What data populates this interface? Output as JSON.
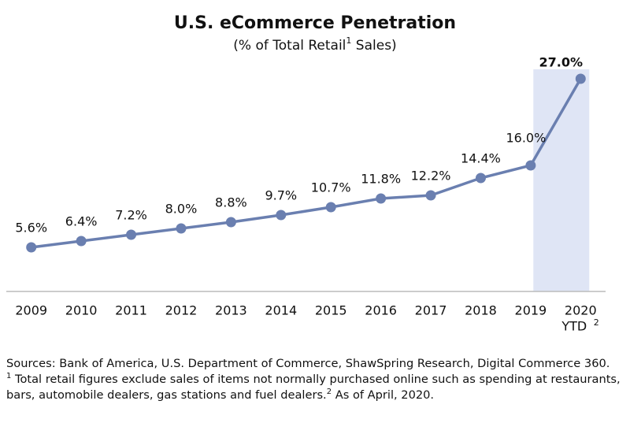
{
  "chart_data": {
    "type": "line",
    "title": "U.S. eCommerce Penetration",
    "subtitle_before": "(% of Total Retail",
    "subtitle_ref": "1",
    "subtitle_after": " Sales)",
    "categories": [
      "2009",
      "2010",
      "2011",
      "2012",
      "2013",
      "2014",
      "2015",
      "2016",
      "2017",
      "2018",
      "2019",
      "2020"
    ],
    "last_category_suffix": "YTD",
    "last_category_ref": "2",
    "series": [
      {
        "name": "eCommerce penetration",
        "color": "#6a7fb0",
        "values": [
          5.6,
          6.4,
          7.2,
          8.0,
          8.8,
          9.7,
          10.7,
          11.8,
          12.2,
          14.4,
          16.0,
          27.0
        ],
        "value_labels": [
          "5.6%",
          "6.4%",
          "7.2%",
          "8.0%",
          "8.8%",
          "9.7%",
          "10.7%",
          "11.8%",
          "12.2%",
          "14.4%",
          "16.0%",
          "27.0%"
        ]
      }
    ],
    "ylim": [
      0,
      28
    ],
    "highlight_category": "2020",
    "highlight_color": "#dfe5f5",
    "title_color": "#4a69a8"
  },
  "notes": {
    "sources": "Sources: Bank of America, U.S. Department of Commerce, ShawSpring Research, Digital Commerce 360.",
    "note1_ref": "1",
    "note1": " Total retail figures exclude sales of items not normally purchased online such as spending at restaurants, bars, automobile dealers, gas stations and fuel dealers.",
    "note2_ref": "2",
    "note2": " As of April, 2020."
  }
}
